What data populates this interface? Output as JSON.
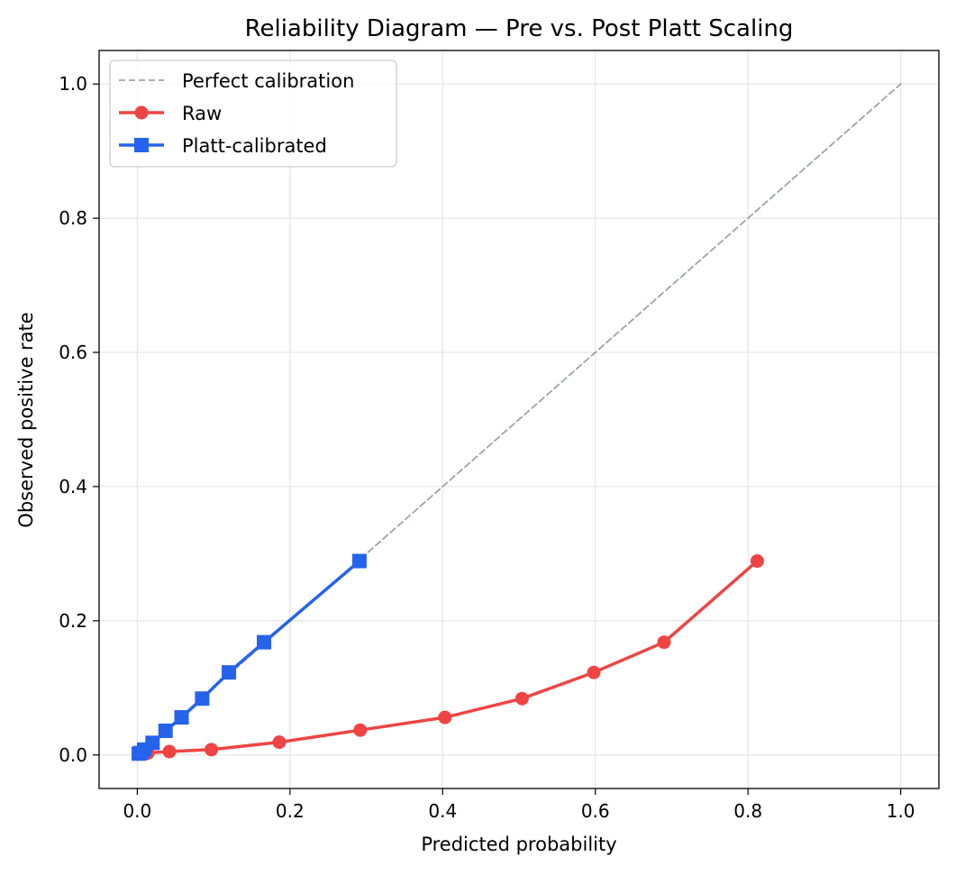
{
  "chart_data": {
    "type": "line",
    "title": "Reliability Diagram — Pre vs. Post Platt Scaling",
    "xlabel": "Predicted probability",
    "ylabel": "Observed positive rate",
    "xlim": [
      -0.05,
      1.05
    ],
    "ylim": [
      -0.05,
      1.05
    ],
    "xticks": [
      0.0,
      0.2,
      0.4,
      0.6,
      0.8,
      1.0
    ],
    "xtick_labels": [
      "0.0",
      "0.2",
      "0.4",
      "0.6",
      "0.8",
      "1.0"
    ],
    "yticks": [
      0.0,
      0.2,
      0.4,
      0.6,
      0.8,
      1.0
    ],
    "ytick_labels": [
      "0.0",
      "0.2",
      "0.4",
      "0.6",
      "0.8",
      "1.0"
    ],
    "grid": true,
    "legend_position": "top-left",
    "series": [
      {
        "name": "Perfect calibration",
        "style": "dashed",
        "color": "#9ca3af",
        "marker": "none",
        "x": [
          0.0,
          1.0
        ],
        "y": [
          0.0,
          1.0
        ]
      },
      {
        "name": "Raw",
        "style": "solid",
        "color": "#ef4444",
        "marker": "circle",
        "x": [
          0.003,
          0.014,
          0.042,
          0.097,
          0.186,
          0.292,
          0.403,
          0.504,
          0.598,
          0.69,
          0.812
        ],
        "y": [
          0.002,
          0.003,
          0.005,
          0.008,
          0.019,
          0.037,
          0.056,
          0.084,
          0.123,
          0.168,
          0.289
        ]
      },
      {
        "name": "Platt-calibrated",
        "style": "solid",
        "color": "#2563eb",
        "marker": "square",
        "x": [
          0.002,
          0.005,
          0.009,
          0.02,
          0.037,
          0.058,
          0.085,
          0.12,
          0.166,
          0.291
        ],
        "y": [
          0.002,
          0.003,
          0.008,
          0.018,
          0.036,
          0.056,
          0.084,
          0.123,
          0.168,
          0.289
        ]
      }
    ]
  }
}
